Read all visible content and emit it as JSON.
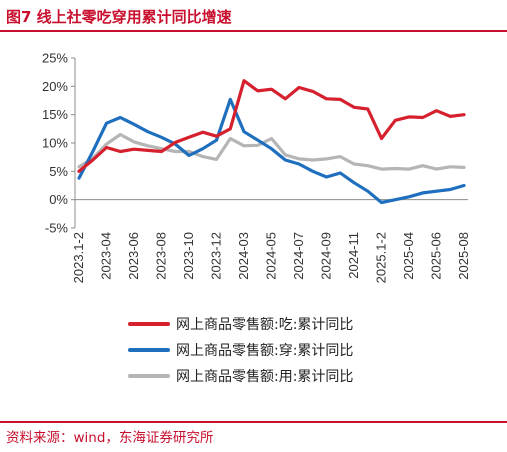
{
  "header": {
    "title": "图7  线上社零吃穿用累计同比增速"
  },
  "footer": {
    "source": "资料来源：wind，东海证券研究所"
  },
  "colors": {
    "accent": "#c8102e",
    "series_eat": "#d6202e",
    "series_wear": "#1f6fbf",
    "series_use": "#b5b5b5"
  },
  "chart_data": {
    "type": "line",
    "title": "",
    "xlabel": "",
    "ylabel": "",
    "ylim": [
      -0.05,
      0.25
    ],
    "yticks": [
      "-5%",
      "0%",
      "5%",
      "10%",
      "15%",
      "20%",
      "25%"
    ],
    "ytick_values": [
      -0.05,
      0,
      0.05,
      0.1,
      0.15,
      0.2,
      0.25
    ],
    "grid": false,
    "legend_position": "bottom",
    "x": [
      "2023.1-2",
      "2023-03",
      "2023-04",
      "2023-05",
      "2023-06",
      "2023-07",
      "2023-08",
      "2023-09",
      "2023-10",
      "2023-11",
      "2023-12",
      "2024.1-2",
      "2024-03",
      "2024-04",
      "2024-05",
      "2024-06",
      "2024-07",
      "2024-08",
      "2024-09",
      "2024-10",
      "2024-11",
      "2024-12",
      "2025.1-2",
      "2025-03",
      "2025-04",
      "2025-05",
      "2025-06",
      "2025-07",
      "2025-08"
    ],
    "x_tick_labels": [
      "2023.1-2",
      "2023-04",
      "2023-06",
      "2023-08",
      "2023-10",
      "2023-12",
      "2024-03",
      "2024-05",
      "2024-07",
      "2024-09",
      "2024-11",
      "2025.1-2",
      "2025-04",
      "2025-06",
      "2025-08"
    ],
    "series": [
      {
        "name": "网上商品零售额:吃:累计同比",
        "color": "#d6202e",
        "values": [
          0.05,
          0.07,
          0.092,
          0.085,
          0.089,
          0.087,
          0.085,
          0.101,
          0.11,
          0.119,
          0.112,
          0.125,
          0.21,
          0.192,
          0.195,
          0.178,
          0.198,
          0.191,
          0.178,
          0.177,
          0.163,
          0.16,
          0.108,
          0.14,
          0.146,
          0.145,
          0.157,
          0.147,
          0.15
        ]
      },
      {
        "name": "网上商品零售额:穿:累计同比",
        "color": "#1f6fbf",
        "values": [
          0.038,
          0.085,
          0.135,
          0.145,
          0.133,
          0.12,
          0.11,
          0.098,
          0.078,
          0.09,
          0.105,
          0.177,
          0.12,
          0.105,
          0.09,
          0.07,
          0.063,
          0.05,
          0.04,
          0.047,
          0.03,
          0.015,
          -0.005,
          0.0,
          0.005,
          0.012,
          0.015,
          0.018,
          0.025
        ]
      },
      {
        "name": "网上商品零售额:用:累计同比",
        "color": "#b5b5b5",
        "values": [
          0.058,
          0.073,
          0.098,
          0.115,
          0.102,
          0.095,
          0.09,
          0.085,
          0.085,
          0.076,
          0.071,
          0.108,
          0.095,
          0.096,
          0.108,
          0.079,
          0.072,
          0.07,
          0.072,
          0.076,
          0.063,
          0.06,
          0.054,
          0.055,
          0.054,
          0.06,
          0.054,
          0.058,
          0.057
        ]
      }
    ]
  }
}
